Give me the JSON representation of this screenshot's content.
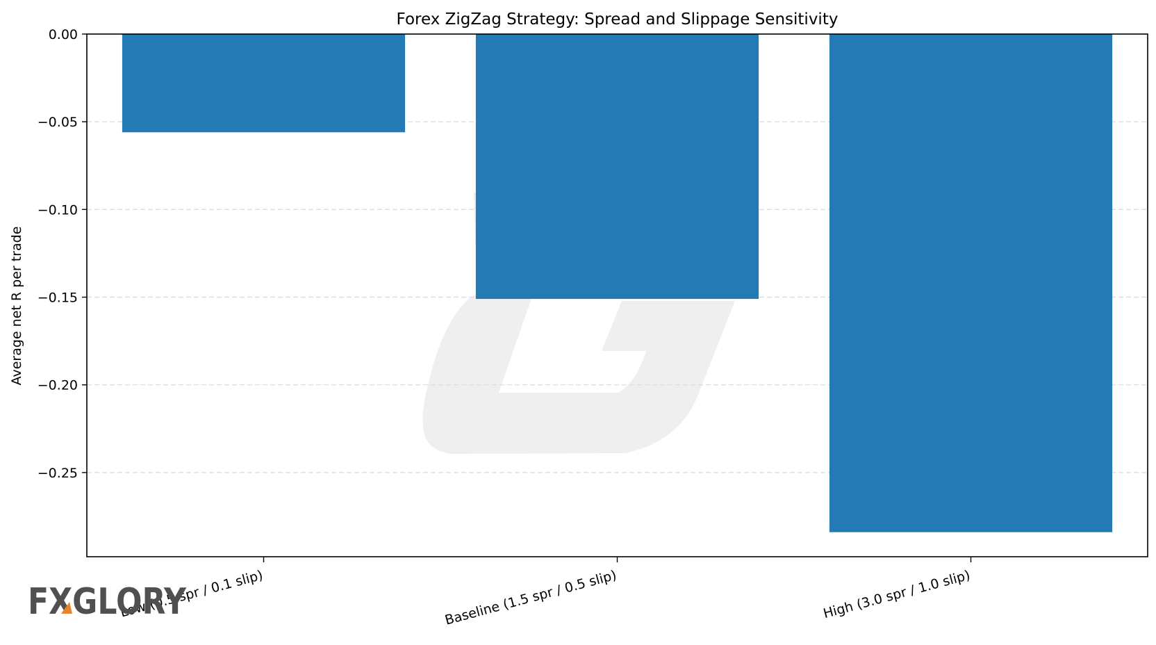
{
  "chart_data": {
    "type": "bar",
    "title": "Forex ZigZag Strategy: Spread and Slippage Sensitivity",
    "xlabel": "",
    "ylabel": "Average net R per trade",
    "categories": [
      "Low (0.5 spr / 0.1 slip)",
      "Baseline (1.5 spr / 0.5 slip)",
      "High (3.0 spr / 1.0 slip)"
    ],
    "values": [
      -0.056,
      -0.151,
      -0.284
    ],
    "ylim": [
      -0.298,
      0.0
    ],
    "yticks": [
      0.0,
      -0.05,
      -0.1,
      -0.15,
      -0.2,
      -0.25
    ],
    "ytick_labels": [
      "0.00",
      "−0.05",
      "−0.10",
      "−0.15",
      "−0.20",
      "−0.25"
    ],
    "grid": "y-dashed",
    "bar_color": "#1f77b4",
    "grid_color": "#d9d9d9"
  },
  "watermark": {
    "logo_icon": "g-logo-watermark-icon",
    "color": "#efefef"
  },
  "brand": {
    "logo_text": "FXGLORY",
    "text_color": "#505050",
    "accent_color": "#e8822c"
  }
}
